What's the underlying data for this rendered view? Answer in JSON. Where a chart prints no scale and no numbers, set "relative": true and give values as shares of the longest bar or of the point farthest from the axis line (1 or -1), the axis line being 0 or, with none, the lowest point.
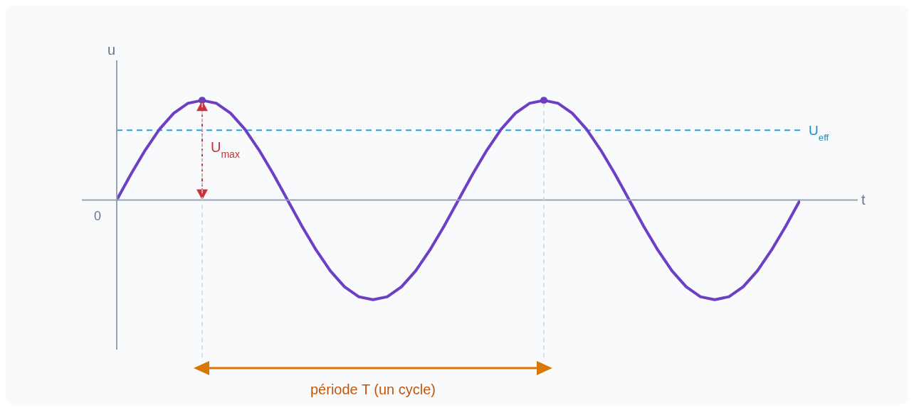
{
  "chart_data": {
    "type": "line",
    "relative": true,
    "xlabel": "t",
    "ylabel": "u",
    "categories": [
      null,
      null,
      null,
      null,
      null,
      null,
      null,
      null,
      null,
      null,
      null,
      null,
      null,
      null,
      null,
      null,
      null,
      null,
      null,
      null,
      null,
      null,
      null,
      null,
      null,
      null,
      null,
      null,
      null,
      null,
      null,
      null,
      null,
      null,
      null,
      null,
      null,
      null,
      null,
      null,
      null,
      null,
      null,
      null,
      null,
      null,
      null,
      null,
      null
    ],
    "series": [
      {
        "color": "#6c3fc4",
        "values": [
          0,
          0.26,
          0.5,
          0.71,
          0.87,
          0.97,
          1,
          0.97,
          0.87,
          0.71,
          0.5,
          0.26,
          0,
          -0.26,
          -0.5,
          -0.71,
          -0.87,
          -0.97,
          -1,
          -0.97,
          -0.87,
          -0.71,
          -0.5,
          -0.26,
          0,
          0.26,
          0.5,
          0.71,
          0.87,
          0.97,
          1,
          0.97,
          0.87,
          0.71,
          0.5,
          0.26,
          0,
          -0.26,
          -0.5,
          -0.71,
          -0.87,
          -0.97,
          -1,
          -0.97,
          -0.87,
          -0.71,
          -0.5,
          -0.26,
          0
        ]
      }
    ],
    "ref_lines": [
      {
        "axis": "y",
        "value": 0.7,
        "label": "U$_{eff}$",
        "color": "#1ea7e1",
        "line_style": "dashed"
      }
    ],
    "annotations": [
      "0",
      "U$_{max}$",
      "période T (un cycle)"
    ]
  }
}
